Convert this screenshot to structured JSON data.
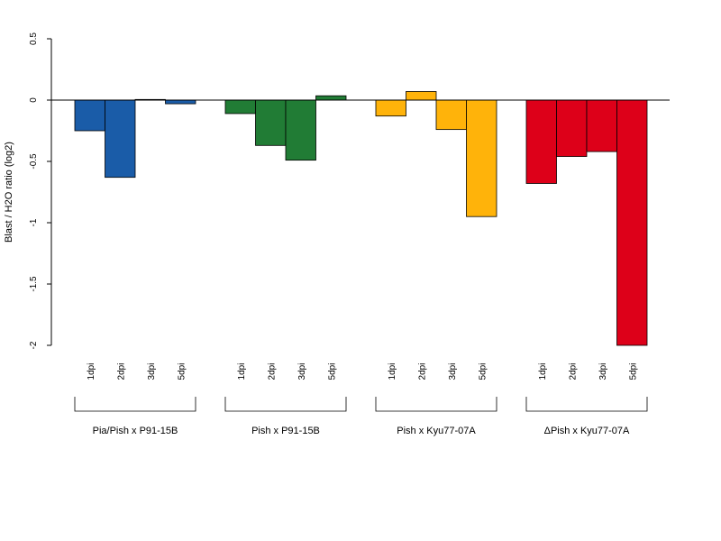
{
  "chart_data": {
    "type": "bar",
    "ylabel": "Blast / H2O ratio (log2)",
    "ylim": [
      -2,
      0.5
    ],
    "yticks": [
      "0.5",
      "0",
      "-0.5",
      "-1",
      "-1.5",
      "-2"
    ],
    "yticks_values": [
      0.5,
      0,
      -0.5,
      -1,
      -1.5,
      -2
    ],
    "categories": [
      "1dpi",
      "2dpi",
      "3dpi",
      "5dpi"
    ],
    "grid": false,
    "groups": [
      {
        "label": "Pia/Pish x P91-15B",
        "color": "#1a5ca8",
        "values": [
          -0.25,
          -0.63,
          0.005,
          -0.03
        ]
      },
      {
        "label": "Pish x P91-15B",
        "color": "#217c35",
        "values": [
          -0.11,
          -0.37,
          -0.49,
          0.035
        ]
      },
      {
        "label": "Pish x Kyu77-07A",
        "color": "#ffb30a",
        "values": [
          -0.13,
          0.07,
          -0.24,
          -0.95
        ]
      },
      {
        "label": "ΔPish x Kyu77-07A",
        "color": "#dd0019",
        "values": [
          -0.68,
          -0.46,
          -0.42,
          -2.0
        ]
      }
    ]
  }
}
